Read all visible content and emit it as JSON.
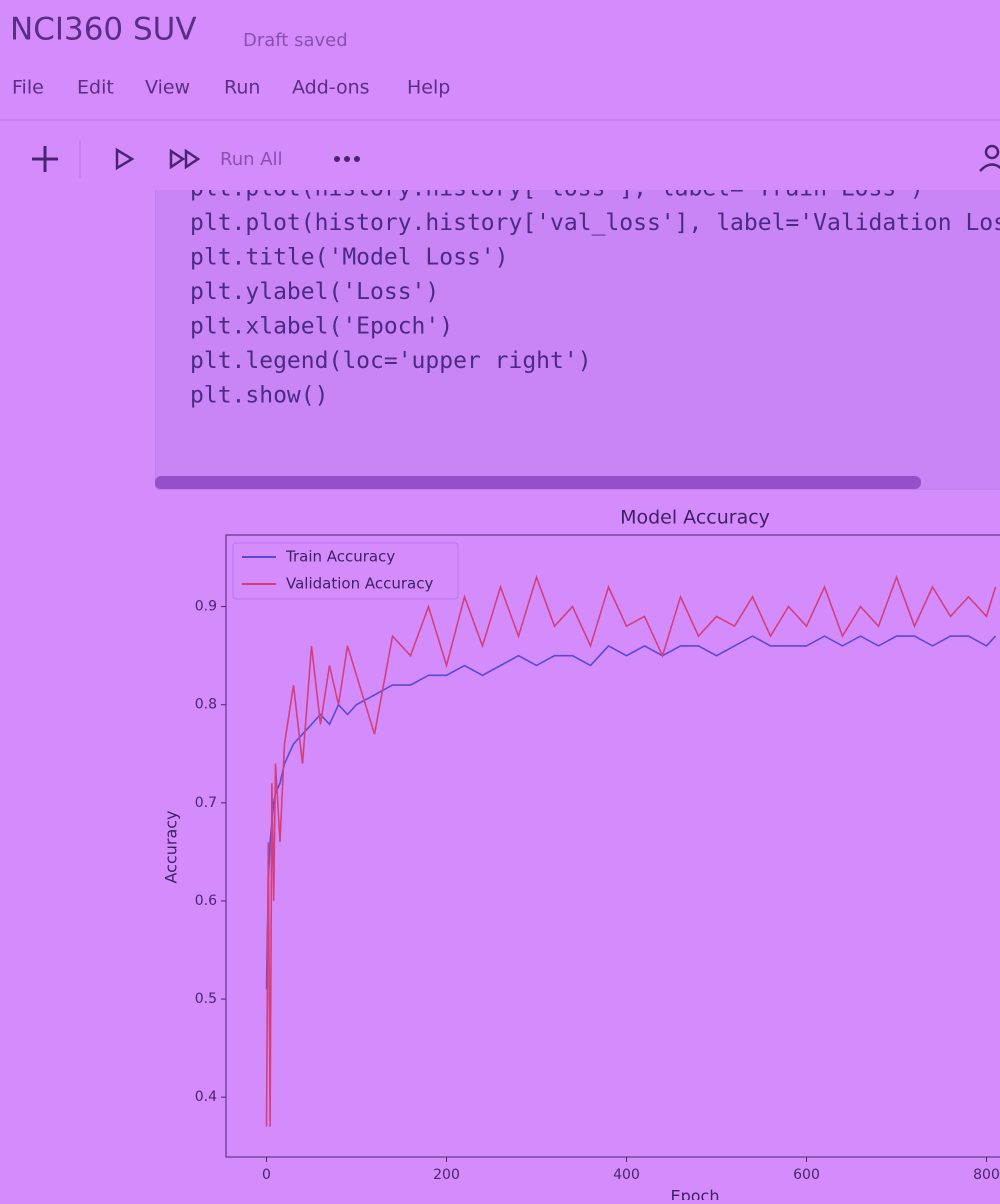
{
  "header": {
    "title": "NCI360 SUV",
    "status": "Draft saved"
  },
  "menu": [
    "File",
    "Edit",
    "View",
    "Run",
    "Add-ons",
    "Help"
  ],
  "toolbar": {
    "run_all": "Run All"
  },
  "code": [
    "plt.plot(history.history['loss'], label='Train Loss')",
    "plt.plot(history.history['val_loss'], label='Validation Loss')",
    "plt.title('Model Loss')",
    "plt.ylabel('Loss')",
    "plt.xlabel('Epoch')",
    "plt.legend(loc='upper right')",
    "plt.show()"
  ],
  "chart_data": {
    "type": "line",
    "title": "Model Accuracy",
    "x_label": "Epoch",
    "y_label": "Accuracy",
    "x": [
      0,
      2,
      4,
      6,
      8,
      10,
      15,
      20,
      30,
      40,
      50,
      60,
      70,
      80,
      90,
      100,
      120,
      140,
      160,
      180,
      200,
      220,
      240,
      260,
      280,
      300,
      320,
      340,
      360,
      380,
      400,
      420,
      440,
      460,
      480,
      500,
      520,
      540,
      560,
      580,
      600,
      620,
      640,
      660,
      680,
      700,
      720,
      740,
      760,
      780,
      800,
      810
    ],
    "series": [
      {
        "name": "Train Accuracy",
        "color": "#5a48d6",
        "values": [
          0.51,
          0.62,
          0.66,
          0.68,
          0.7,
          0.71,
          0.72,
          0.74,
          0.76,
          0.77,
          0.78,
          0.79,
          0.78,
          0.8,
          0.79,
          0.8,
          0.81,
          0.82,
          0.82,
          0.83,
          0.83,
          0.84,
          0.83,
          0.84,
          0.85,
          0.84,
          0.85,
          0.85,
          0.84,
          0.86,
          0.85,
          0.86,
          0.85,
          0.86,
          0.86,
          0.85,
          0.86,
          0.87,
          0.86,
          0.86,
          0.86,
          0.87,
          0.86,
          0.87,
          0.86,
          0.87,
          0.87,
          0.86,
          0.87,
          0.87,
          0.86,
          0.87
        ]
      },
      {
        "name": "Validation Accuracy",
        "color": "#d2407c",
        "values": [
          0.37,
          0.66,
          0.37,
          0.72,
          0.6,
          0.74,
          0.66,
          0.76,
          0.82,
          0.74,
          0.86,
          0.78,
          0.84,
          0.8,
          0.86,
          0.83,
          0.77,
          0.87,
          0.85,
          0.9,
          0.84,
          0.91,
          0.86,
          0.92,
          0.87,
          0.93,
          0.88,
          0.9,
          0.86,
          0.92,
          0.88,
          0.89,
          0.85,
          0.91,
          0.87,
          0.89,
          0.88,
          0.91,
          0.87,
          0.9,
          0.88,
          0.92,
          0.87,
          0.9,
          0.88,
          0.93,
          0.88,
          0.92,
          0.89,
          0.91,
          0.89,
          0.92
        ]
      }
    ],
    "xlim": [
      -45,
      815
    ],
    "ylim": [
      0.339,
      0.973
    ],
    "xticks": [
      0,
      200,
      400,
      600,
      800
    ],
    "yticks": [
      0.4,
      0.5,
      0.6,
      0.7,
      0.8,
      0.9
    ],
    "legend": "upper left"
  }
}
